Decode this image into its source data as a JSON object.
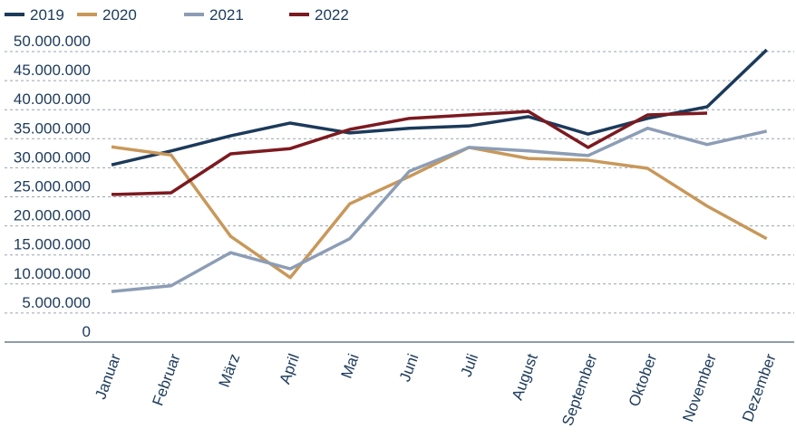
{
  "chart_data": {
    "type": "line",
    "categories": [
      "Januar",
      "Februar",
      "März",
      "April",
      "Mai",
      "Juni",
      "Juli",
      "August",
      "September",
      "Oktober",
      "November",
      "Dezember"
    ],
    "series": [
      {
        "name": "2019",
        "color": "#1c3a5a",
        "values": [
          30500000,
          32900000,
          35500000,
          37700000,
          36000000,
          36800000,
          37200000,
          38800000,
          35800000,
          38500000,
          40500000,
          50300000
        ]
      },
      {
        "name": "2020",
        "color": "#c8985a",
        "values": [
          33600000,
          32200000,
          18200000,
          11100000,
          23800000,
          28500000,
          33500000,
          31600000,
          31300000,
          29900000,
          23400000,
          17800000
        ]
      },
      {
        "name": "2021",
        "color": "#8c9db5",
        "values": [
          8700000,
          9700000,
          15400000,
          12600000,
          17800000,
          29400000,
          33500000,
          32900000,
          32100000,
          36800000,
          34000000,
          36300000
        ]
      },
      {
        "name": "2022",
        "color": "#7b1a20",
        "values": [
          25400000,
          25700000,
          32400000,
          33300000,
          36600000,
          38500000,
          39100000,
          39700000,
          33500000,
          39100000,
          39400000,
          null
        ]
      }
    ],
    "ylim": [
      0,
      50000000
    ],
    "yticks": [
      0,
      {
        "value": 5000000,
        "label": "5.000.000"
      },
      {
        "value": 10000000,
        "label": "10.000.000"
      },
      {
        "value": 15000000,
        "label": "15.000.000"
      },
      {
        "value": 20000000,
        "label": "20.000.000"
      },
      {
        "value": 25000000,
        "label": "25.000.000"
      },
      {
        "value": 30000000,
        "label": "30.000.000"
      },
      {
        "value": 35000000,
        "label": "35.000.000"
      },
      {
        "value": 40000000,
        "label": "40.000.000"
      },
      {
        "value": 45000000,
        "label": "45.000.000"
      },
      {
        "value": 50000000,
        "label": "50.000.000"
      }
    ],
    "grid": true,
    "legend": "top-left"
  }
}
